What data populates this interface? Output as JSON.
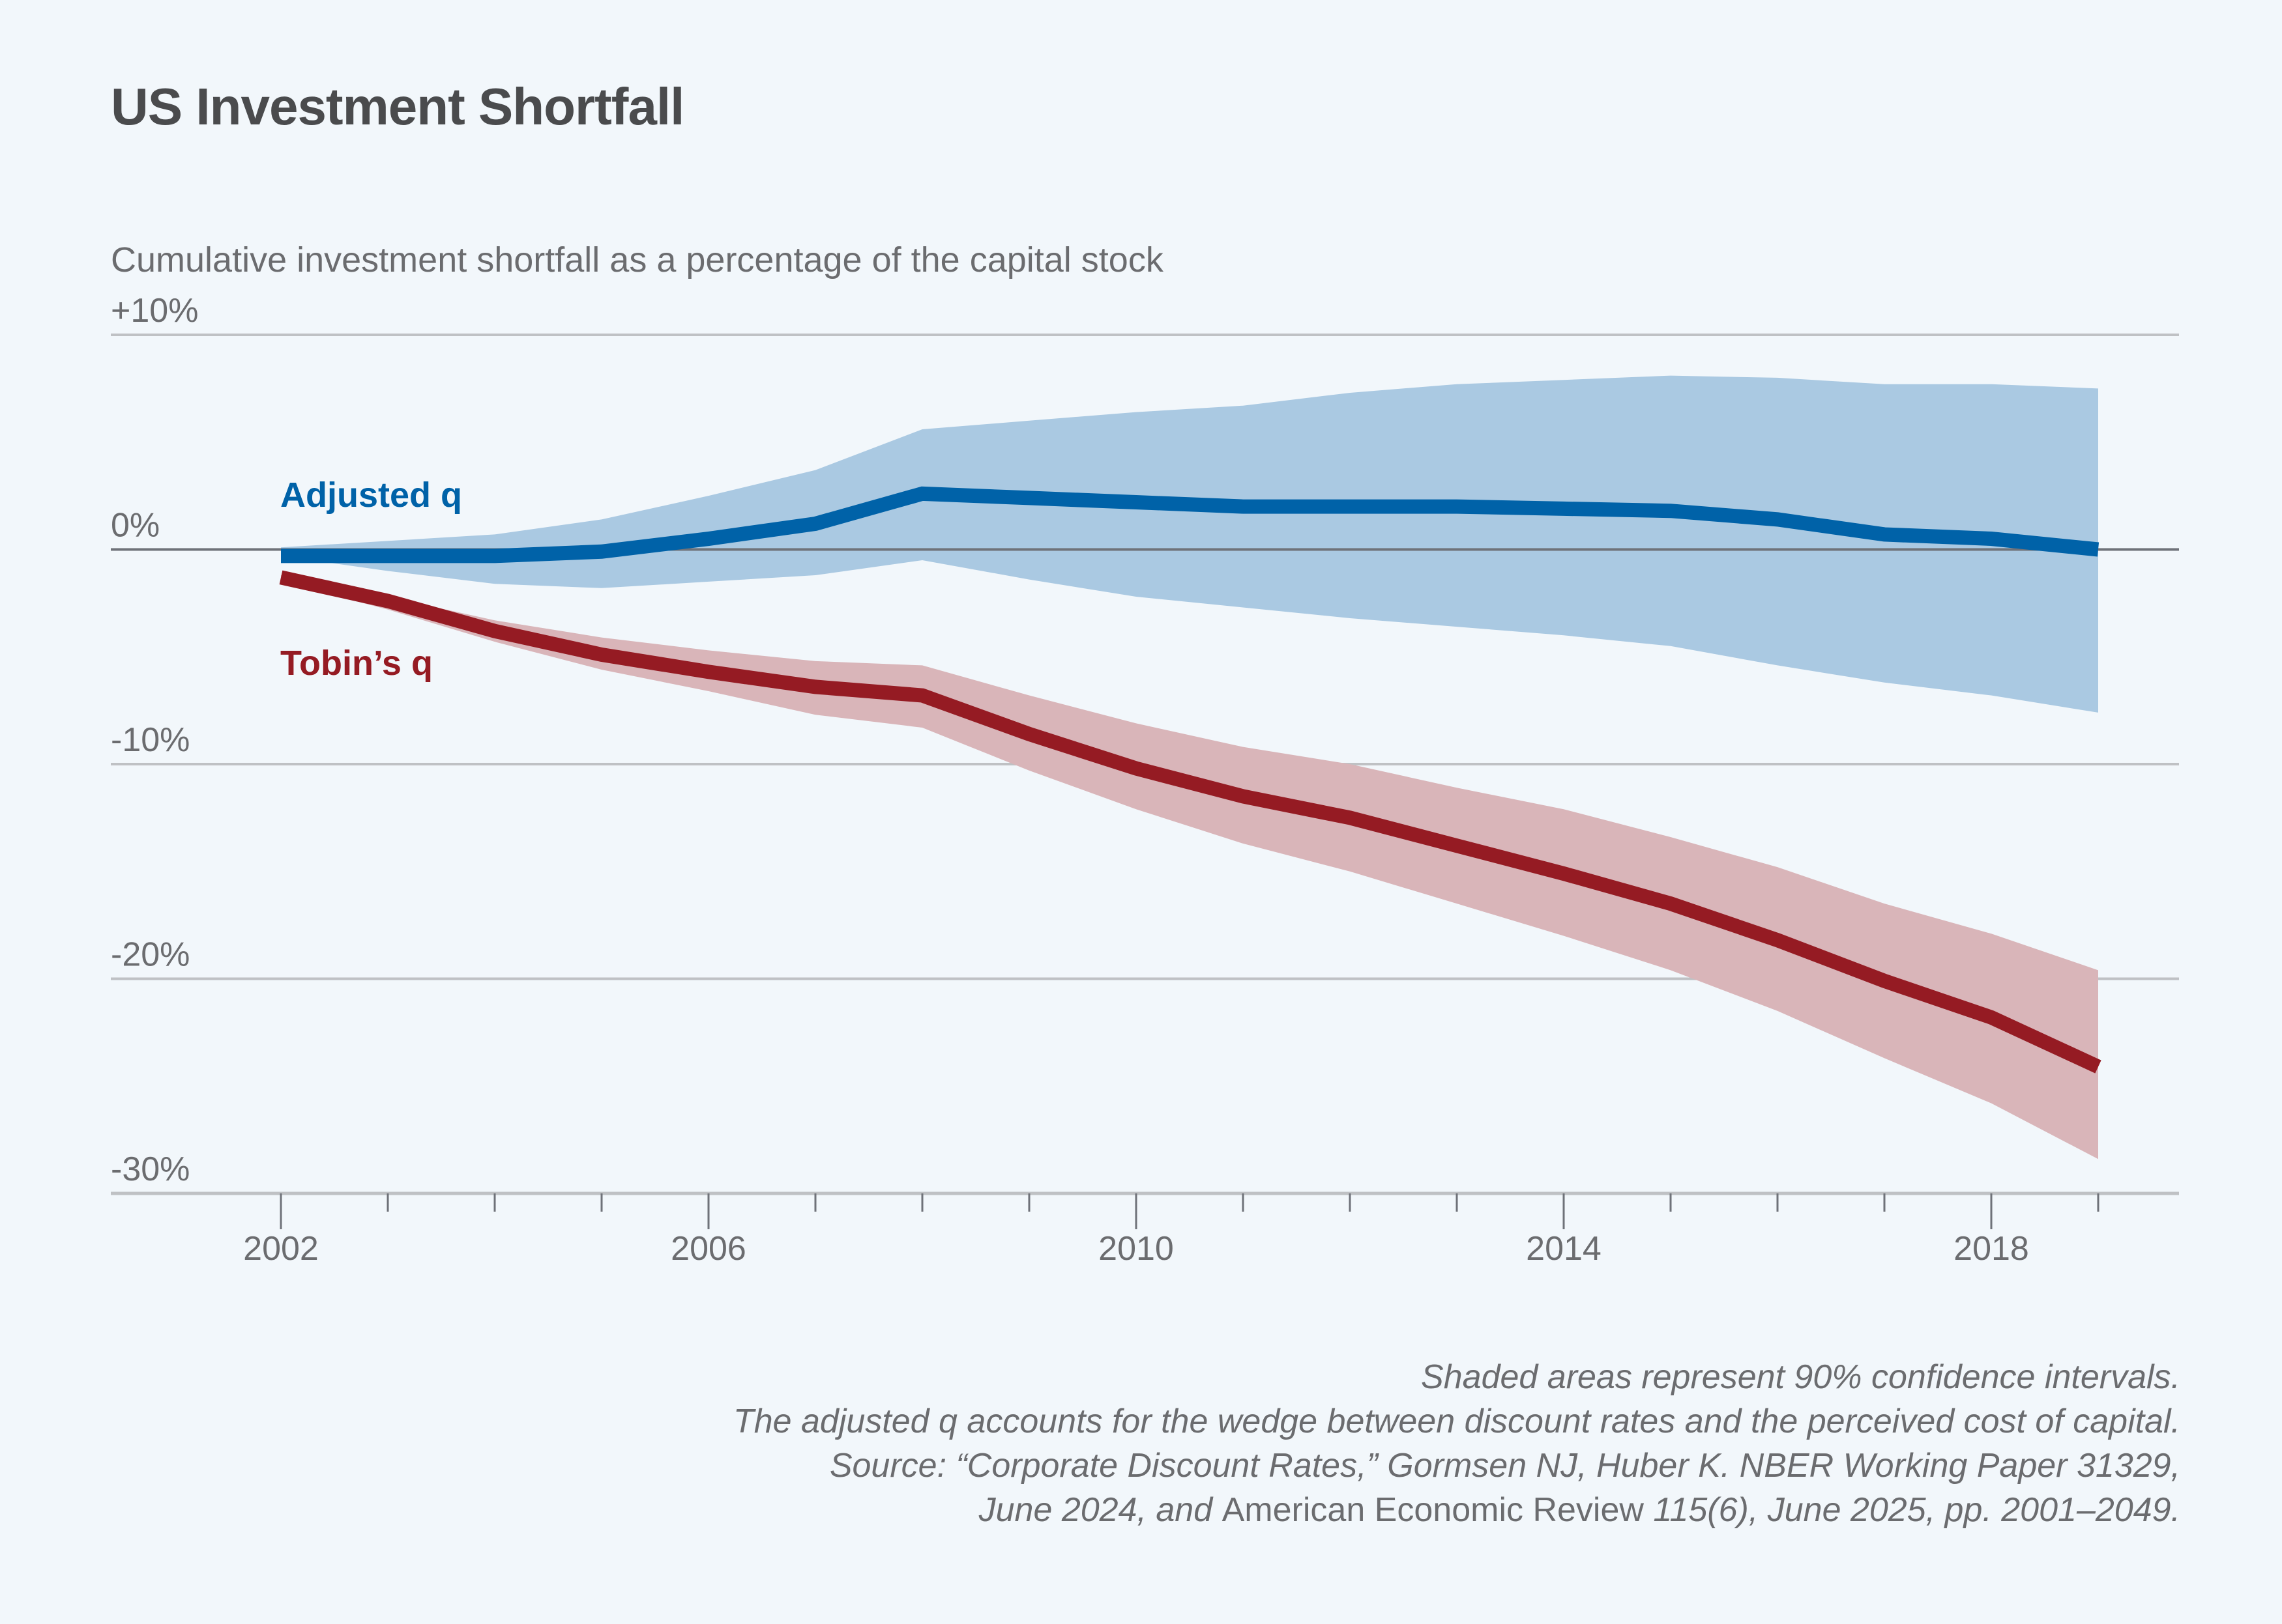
{
  "title": "US Investment Shortfall",
  "subtitle": "Cumulative investment shortfall as a percentage of the capital stock",
  "footer": {
    "line1": "Shaded areas represent 90% confidence intervals.",
    "line2": "The adjusted q accounts for the wedge between discount rates and the perceived cost of capital.",
    "line3": "Source: “Corporate Discount Rates,” Gormsen NJ, Huber K. NBER Working Paper 31329,",
    "line4_a": "June 2024, and ",
    "line4_b": "American Economic Review",
    "line4_c": " 115(6), June 2025, pp. 2001–2049."
  },
  "colors": {
    "adjusted_line": "#0062a8",
    "adjusted_band": "#aac9e2",
    "tobin_line": "#951b23",
    "tobin_band": "#d9b5b9",
    "grid": "#bfc1c4",
    "zero_line": "#6f7279",
    "text": "#6b6c6f"
  },
  "chart_data": {
    "type": "line",
    "title": "US Investment Shortfall",
    "ylabel": "Cumulative investment shortfall as a percentage of the capital stock",
    "xlabel": "",
    "xlim": [
      2000.7,
      2020.0
    ],
    "ylim": [
      -30,
      10
    ],
    "grid": true,
    "x_tick_labels": [
      "2002",
      "2006",
      "2010",
      "2014",
      "2018"
    ],
    "x_major_ticks": [
      2002,
      2006,
      2010,
      2014,
      2018
    ],
    "x_minor_ticks": [
      2003,
      2004,
      2005,
      2007,
      2008,
      2009,
      2011,
      2012,
      2013,
      2015,
      2016,
      2017,
      2019
    ],
    "y_ticks": [
      10,
      0,
      -10,
      -20,
      -30
    ],
    "y_tick_labels": [
      "+10%",
      "0%",
      "-10%",
      "-20%",
      "-30%"
    ],
    "x": [
      2002,
      2003,
      2004,
      2005,
      2006,
      2007,
      2008,
      2009,
      2010,
      2011,
      2012,
      2013,
      2014,
      2015,
      2016,
      2017,
      2018,
      2019
    ],
    "series": [
      {
        "name": "Adjusted q",
        "label": "Adjusted q",
        "values": [
          -0.3,
          -0.3,
          -0.3,
          -0.1,
          0.5,
          1.2,
          2.6,
          2.4,
          2.2,
          2.0,
          2.0,
          2.0,
          1.9,
          1.8,
          1.4,
          0.7,
          0.5,
          0.0
        ],
        "ci_upper": [
          0.1,
          0.4,
          0.7,
          1.4,
          2.5,
          3.7,
          5.6,
          6.0,
          6.4,
          6.7,
          7.3,
          7.7,
          7.9,
          8.1,
          8.0,
          7.7,
          7.7,
          7.5
        ],
        "ci_lower": [
          -0.3,
          -1.0,
          -1.6,
          -1.8,
          -1.5,
          -1.2,
          -0.5,
          -1.4,
          -2.2,
          -2.7,
          -3.2,
          -3.6,
          -4.0,
          -4.5,
          -5.4,
          -6.2,
          -6.8,
          -7.6
        ]
      },
      {
        "name": "Tobin's q",
        "label": "Tobin’s q",
        "values": [
          -1.3,
          -2.4,
          -3.8,
          -4.9,
          -5.7,
          -6.4,
          -6.8,
          -8.6,
          -10.2,
          -11.5,
          -12.5,
          -13.8,
          -15.1,
          -16.5,
          -18.2,
          -20.1,
          -21.8,
          -24.1
        ],
        "ci_upper": [
          -1.2,
          -2.2,
          -3.3,
          -4.1,
          -4.7,
          -5.2,
          -5.4,
          -6.8,
          -8.1,
          -9.2,
          -10.0,
          -11.1,
          -12.1,
          -13.4,
          -14.8,
          -16.5,
          -17.9,
          -19.6
        ],
        "ci_lower": [
          -1.5,
          -2.8,
          -4.3,
          -5.6,
          -6.6,
          -7.7,
          -8.3,
          -10.3,
          -12.1,
          -13.7,
          -15.0,
          -16.5,
          -18.0,
          -19.6,
          -21.5,
          -23.7,
          -25.8,
          -28.4
        ]
      }
    ],
    "annotations": [
      "Shaded areas represent 90% confidence intervals."
    ]
  }
}
